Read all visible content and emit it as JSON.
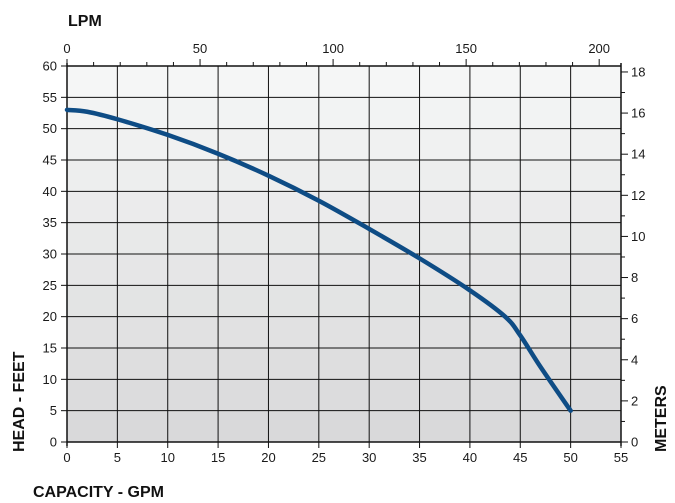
{
  "chart_data": {
    "type": "line",
    "title": "",
    "xlabel": "CAPACITY - GPM",
    "ylabel": "HEAD - FEET",
    "top_xlabel": "LPM",
    "right_ylabel": "METERS",
    "xlim": [
      0,
      55
    ],
    "ylim": [
      0,
      60
    ],
    "x_ticks": [
      0,
      5,
      10,
      15,
      20,
      25,
      30,
      35,
      40,
      45,
      50,
      55
    ],
    "y_ticks": [
      0,
      5,
      10,
      15,
      20,
      25,
      30,
      35,
      40,
      45,
      50,
      55,
      60
    ],
    "top_xlim": [
      0,
      208.2
    ],
    "top_x_labeled_ticks": [
      0,
      50,
      100,
      150,
      200
    ],
    "top_x_minor_step": 10,
    "right_ylim": [
      0,
      18.29
    ],
    "right_y_labeled_ticks": [
      0,
      2,
      4,
      6,
      8,
      10,
      12,
      14,
      16,
      18
    ],
    "right_y_minor_step": 1,
    "grid": true,
    "legend": "none",
    "series": [
      {
        "x": [
          0,
          2,
          5,
          10,
          15,
          20,
          25,
          30,
          35,
          40,
          43.5,
          45,
          47,
          50
        ],
        "y": [
          53,
          52.7,
          51.5,
          49,
          46,
          42.5,
          38.5,
          34,
          29.3,
          24.2,
          20,
          17,
          12,
          5
        ]
      }
    ],
    "colors": {
      "curve": "#0e4c85",
      "band_top": "#f5f6f6",
      "band_bottom": "#d9d9da",
      "grid": "#111111"
    }
  }
}
